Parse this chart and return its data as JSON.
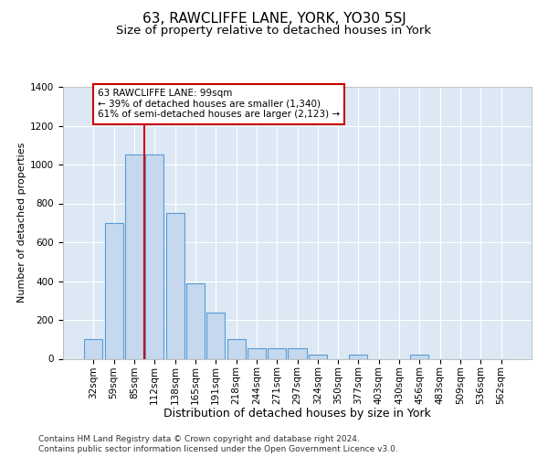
{
  "title": "63, RAWCLIFFE LANE, YORK, YO30 5SJ",
  "subtitle": "Size of property relative to detached houses in York",
  "xlabel": "Distribution of detached houses by size in York",
  "ylabel": "Number of detached properties",
  "footer_line1": "Contains HM Land Registry data © Crown copyright and database right 2024.",
  "footer_line2": "Contains public sector information licensed under the Open Government Licence v3.0.",
  "categories": [
    "32sqm",
    "59sqm",
    "85sqm",
    "112sqm",
    "138sqm",
    "165sqm",
    "191sqm",
    "218sqm",
    "244sqm",
    "271sqm",
    "297sqm",
    "324sqm",
    "350sqm",
    "377sqm",
    "403sqm",
    "430sqm",
    "456sqm",
    "483sqm",
    "509sqm",
    "536sqm",
    "562sqm"
  ],
  "values": [
    100,
    700,
    1050,
    1050,
    750,
    390,
    240,
    100,
    55,
    55,
    55,
    20,
    0,
    20,
    0,
    0,
    20,
    0,
    0,
    0,
    0
  ],
  "bar_color": "#c5d8ed",
  "bar_edge_color": "#5b9bd5",
  "plot_bg_color": "#dce9f5",
  "vline_x": 2.5,
  "vline_color": "#cc0000",
  "ylim": [
    0,
    1400
  ],
  "yticks": [
    0,
    200,
    400,
    600,
    800,
    1000,
    1200,
    1400
  ],
  "annotation_text": "63 RAWCLIFFE LANE: 99sqm\n← 39% of detached houses are smaller (1,340)\n61% of semi-detached houses are larger (2,123) →",
  "annotation_box_color": "white",
  "annotation_box_edge_color": "#cc0000",
  "title_fontsize": 11,
  "subtitle_fontsize": 9.5,
  "xlabel_fontsize": 9,
  "ylabel_fontsize": 8,
  "tick_fontsize": 7.5,
  "annotation_fontsize": 7.5,
  "footer_fontsize": 6.5
}
